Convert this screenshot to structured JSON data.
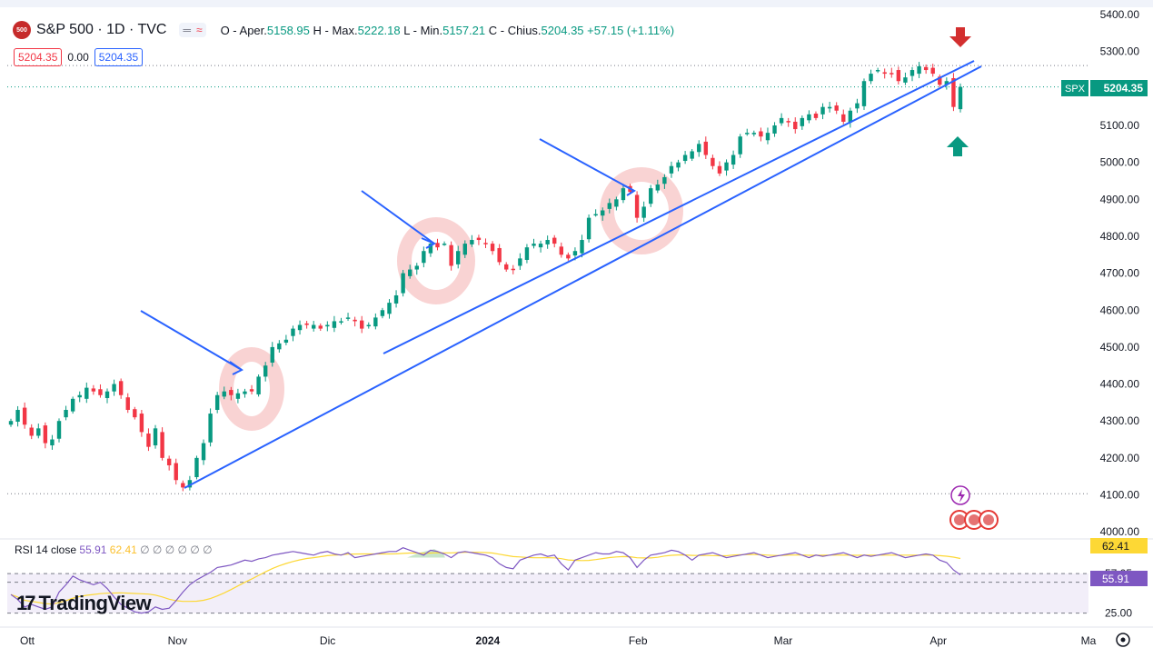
{
  "header": {
    "logo_text": "500",
    "symbol": "S&P 500 · 1D · TVC",
    "toggle_a": "═",
    "toggle_b": "≈",
    "o_label": "O - Aper.",
    "o_value": "5158.95",
    "h_label": "H - Max.",
    "h_value": "5222.18",
    "l_label": "L - Min.",
    "l_value": "5157.21",
    "c_label": "C - Chius.",
    "c_value": "5204.35",
    "change": "+57.15 (+1.11%)",
    "bid": "5204.35",
    "spread": "0.00",
    "ask": "5204.35"
  },
  "price_tag": {
    "symbol": "SPX",
    "value": "5204.35"
  },
  "rsi": {
    "label": "RSI 14 close",
    "value": "55.91",
    "ma_value": "62.41",
    "empty": "∅ ∅ ∅ ∅ ∅ ∅",
    "tag_ma": "62.41",
    "tag_rsi": "55.91"
  },
  "watermark": "TradingView",
  "colors": {
    "up": "#089981",
    "down": "#f23645",
    "trendline": "#2962ff",
    "rsi": "#7e57c2",
    "rsi_ma": "#fdd835",
    "highlight": "#f8c8c8"
  },
  "chart_data": {
    "type": "candlestick",
    "y_axis_ticks": [
      "5400.00",
      "5300.00",
      "5200.00",
      "5100.00",
      "5000.00",
      "4900.00",
      "4800.00",
      "4700.00",
      "4600.00",
      "4500.00",
      "4400.00",
      "4300.00",
      "4200.00",
      "4100.00",
      "4000.00"
    ],
    "ylim": [
      3993,
      5410
    ],
    "x_axis_ticks": [
      "Ott",
      "Nov",
      "Dic",
      "2024",
      "Feb",
      "Mar",
      "Apr",
      "Ma"
    ],
    "x_tick_dates": [
      "2023-10-02",
      "2023-11-01",
      "2023-12-01",
      "2024-01-02",
      "2024-02-01",
      "2024-03-01",
      "2024-04-01",
      "2024-05-01"
    ],
    "x_range": [
      "2023-09-28",
      "2024-05-01"
    ],
    "closes": [
      4300,
      4330,
      4290,
      4260,
      4280,
      4240,
      4250,
      4300,
      4330,
      4360,
      4370,
      4390,
      4380,
      4370,
      4380,
      4400,
      4370,
      4330,
      4310,
      4270,
      4230,
      4280,
      4200,
      4180,
      4140,
      4120,
      4140,
      4200,
      4240,
      4320,
      4370,
      4380,
      4370,
      4375,
      4380,
      4380,
      4420,
      4450,
      4500,
      4510,
      4520,
      4550,
      4560,
      4560,
      4560,
      4550,
      4560,
      4570,
      4570,
      4580,
      4570,
      4550,
      4560,
      4580,
      4600,
      4620,
      4640,
      4700,
      4710,
      4720,
      4760,
      4780,
      4770,
      4780,
      4720,
      4760,
      4780,
      4790,
      4790,
      4780,
      4760,
      4730,
      4710,
      4710,
      4740,
      4770,
      4780,
      4780,
      4790,
      4780,
      4750,
      4740,
      4760,
      4790,
      4850,
      4860,
      4870,
      4890,
      4900,
      4930,
      4920,
      4850,
      4880,
      4930,
      4940,
      4960,
      4990,
      5000,
      5020,
      5030,
      5050,
      5020,
      4990,
      4970,
      5000,
      5020,
      5070,
      5080,
      5080,
      5070,
      5080,
      5100,
      5120,
      5110,
      5090,
      5120,
      5130,
      5120,
      5150,
      5150,
      5140,
      5110,
      5140,
      5160,
      5220,
      5240,
      5250,
      5240,
      5240,
      5220,
      5230,
      5250,
      5260,
      5250,
      5240,
      5210,
      5220,
      5150,
      5204.35
    ],
    "rsi_values": [
      40,
      36,
      30,
      32,
      30,
      28,
      30,
      42,
      48,
      55,
      52,
      50,
      48,
      50,
      45,
      38,
      32,
      29,
      26,
      25,
      26,
      30,
      28,
      29,
      35,
      42,
      48,
      52,
      55,
      58,
      62,
      63,
      64,
      66,
      68,
      67,
      69,
      70,
      72,
      73,
      74,
      75,
      74,
      73,
      72,
      74,
      75,
      73,
      72,
      74,
      70,
      71,
      72,
      73,
      74,
      75,
      75,
      78,
      76,
      74,
      72,
      76,
      75,
      73,
      70,
      74,
      75,
      74,
      73,
      72,
      70,
      65,
      62,
      61,
      68,
      70,
      72,
      73,
      71,
      72,
      65,
      60,
      68,
      70,
      72,
      74,
      73,
      73,
      75,
      74,
      70,
      62,
      68,
      72,
      73,
      74,
      76,
      75,
      72,
      68,
      72,
      73,
      74,
      72,
      70,
      71,
      72,
      73,
      74,
      72,
      70,
      71,
      72,
      73,
      74,
      72,
      70,
      72,
      71,
      72,
      73,
      74,
      72,
      70,
      72,
      71,
      72,
      73,
      74,
      72,
      70,
      71,
      72,
      73,
      72,
      68,
      66,
      60,
      56
    ],
    "rsi_ylim": [
      21,
      80
    ],
    "rsi_levels": [
      "57.05",
      "50.00",
      "25.00"
    ],
    "annotations": "trendlines, arrows and highlight circles drawn on chart"
  }
}
